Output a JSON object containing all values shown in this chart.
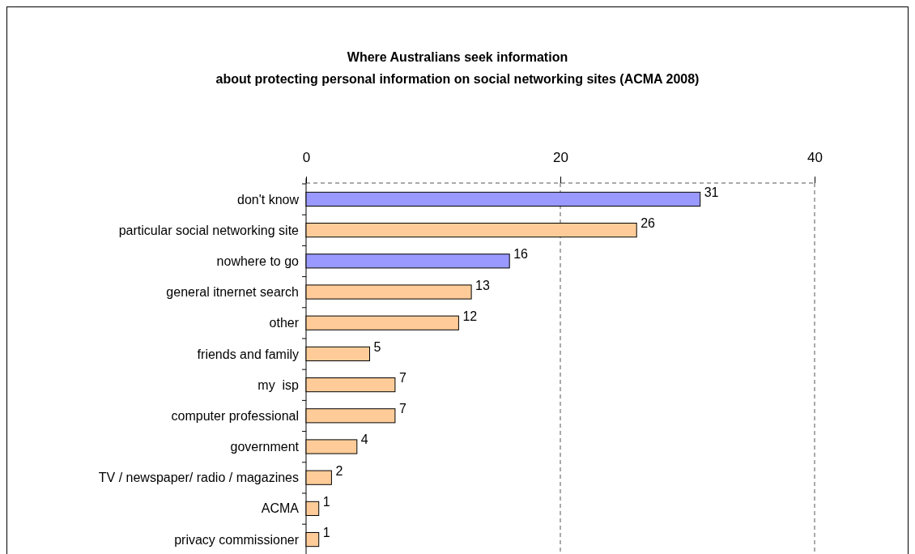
{
  "chart_data": {
    "type": "bar",
    "orientation": "horizontal",
    "title": "Where Australians seek information\nabout protecting personal information on social networking sites (ACMA 2008)",
    "categories": [
      "don't know",
      "particular social networking site",
      "nowhere to go",
      "general itnernet search",
      "other",
      "friends and family",
      "my  isp",
      "computer professional",
      "government",
      "TV / newspaper/ radio / magazines",
      "ACMA",
      "privacy commissioner"
    ],
    "values": [
      31,
      26,
      16,
      13,
      12,
      5,
      7,
      7,
      4,
      2,
      1,
      1
    ],
    "colors": [
      "#9999ff",
      "#ffcc99",
      "#9999ff",
      "#ffcc99",
      "#ffcc99",
      "#ffcc99",
      "#ffcc99",
      "#ffcc99",
      "#ffcc99",
      "#ffcc99",
      "#ffcc99",
      "#ffcc99"
    ],
    "xlim": [
      0,
      40
    ],
    "xticks": [
      0,
      20,
      40
    ],
    "grid": "x",
    "data_labels": true
  }
}
